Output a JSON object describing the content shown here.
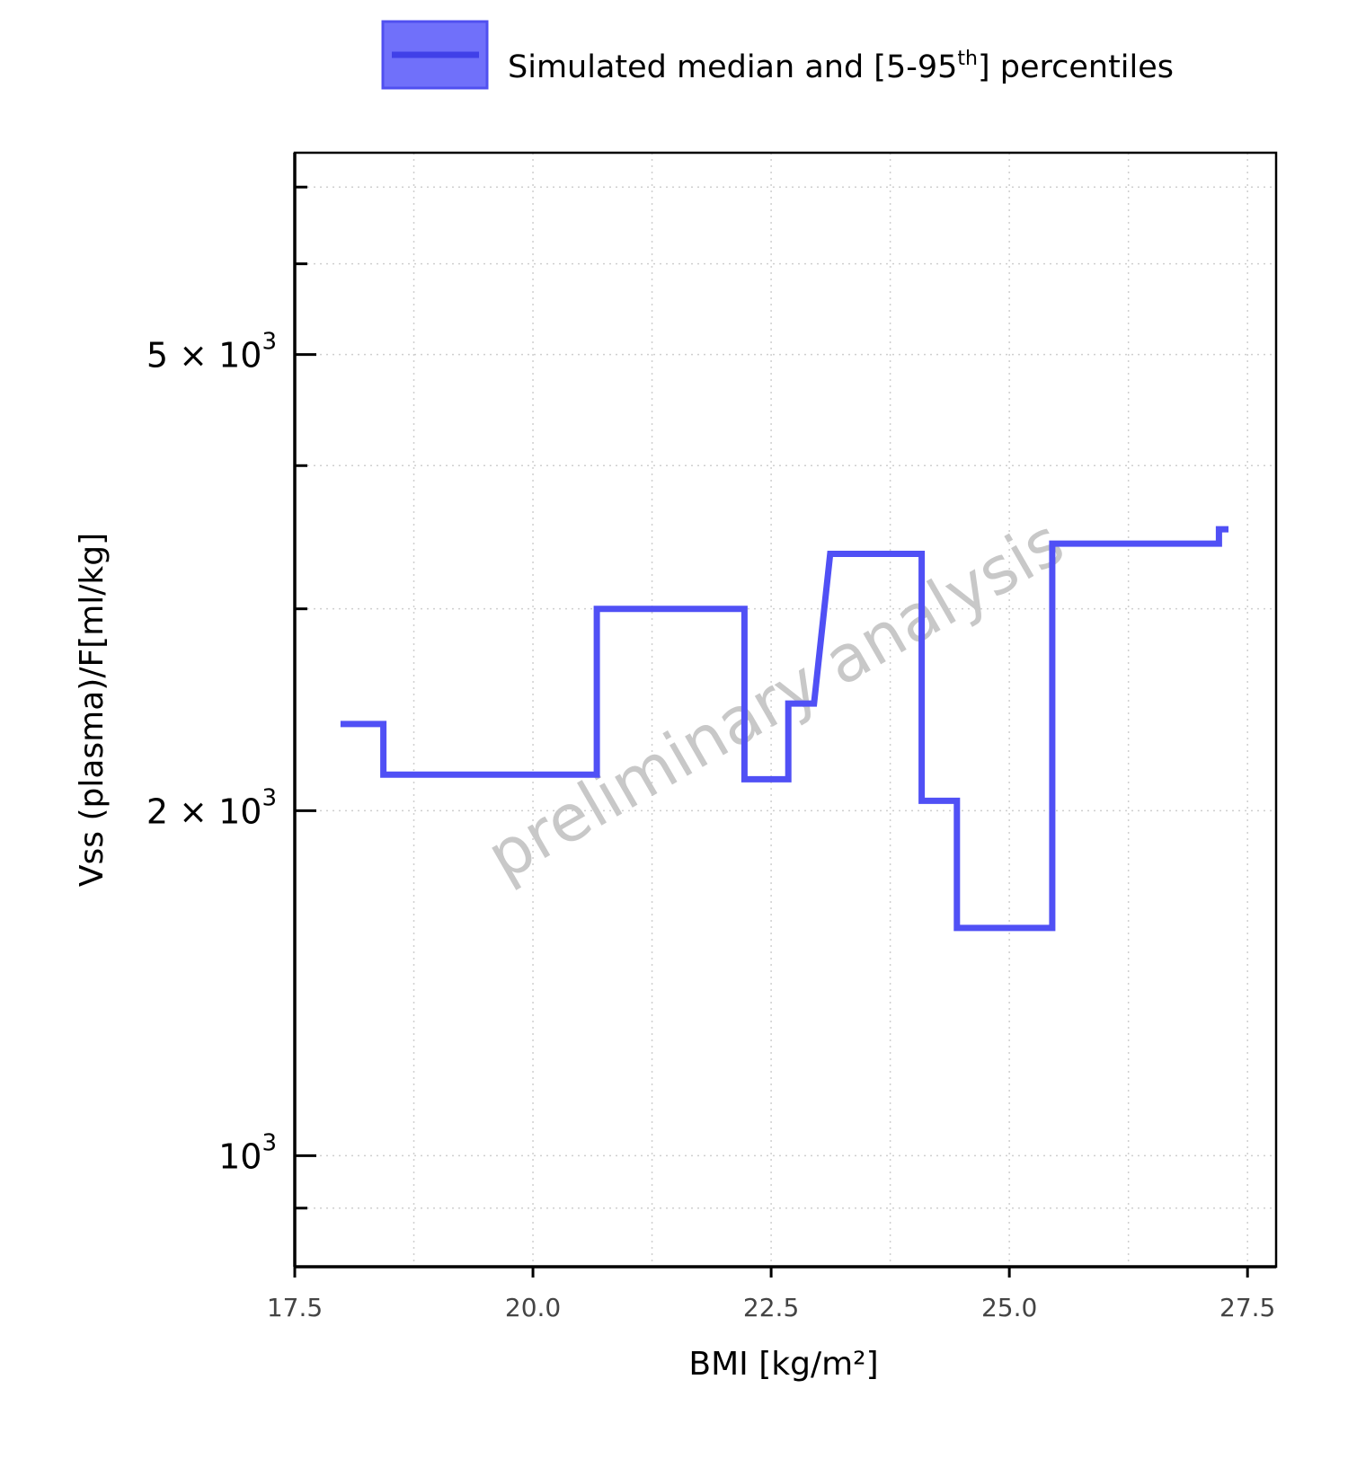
{
  "chart_data": {
    "type": "line",
    "xlabel": "BMI [kg/m²]",
    "ylabel": "Vss (plasma)/F[ml/kg]",
    "xlim": [
      17.5,
      27.8
    ],
    "ylim": [
      800,
      7500
    ],
    "y_scale": "log",
    "grid": true,
    "legend_position": "top",
    "watermark": "preliminary analysis",
    "x_ticks": [
      17.5,
      20.0,
      22.5,
      25.0,
      27.5
    ],
    "x_tick_labels": [
      "17.5",
      "20.0",
      "22.5",
      "25.0",
      "27.5"
    ],
    "y_ticks": [
      {
        "value": 5000,
        "mantissa": "5 × 10",
        "exponent": "3"
      },
      {
        "value": 2000,
        "mantissa": "2 × 10",
        "exponent": "3"
      },
      {
        "value": 1000,
        "mantissa": "10",
        "exponent": "3"
      }
    ],
    "y_minor_ticks": [
      800,
      900,
      3000,
      4000,
      6000,
      7000
    ],
    "series": [
      {
        "name": "Simulated median and [5-95th] percentiles",
        "legend_label": {
          "prefix": "Simulated median and [5-95",
          "superscript": "th",
          "suffix": "] percentiles"
        },
        "color": "#5050f5",
        "band_color": "#6e6ef8",
        "x": [
          17.98,
          18.43,
          18.43,
          20.67,
          20.67,
          22.22,
          22.22,
          22.68,
          22.68,
          22.95,
          23.12,
          24.08,
          24.08,
          24.45,
          24.45,
          25.45,
          25.45,
          27.2,
          27.2,
          27.3
        ],
        "y": [
          2380,
          2380,
          2150,
          2150,
          3000,
          3000,
          2130,
          2130,
          2480,
          2480,
          3350,
          3350,
          2040,
          2040,
          1580,
          1580,
          3420,
          3420,
          3520,
          3520
        ]
      }
    ]
  }
}
